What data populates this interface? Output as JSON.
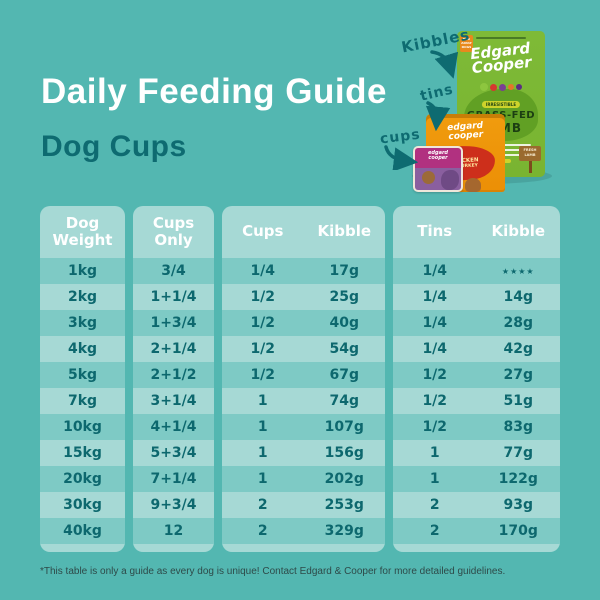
{
  "page": {
    "title": "Daily Feeding Guide",
    "subtitle": "Dog Cups",
    "footnote": "*This table is only a guide as every dog is unique! Contact Edgard & Cooper for more detailed guidelines."
  },
  "colors": {
    "bg": "#53b7b1",
    "block": "#a6d9d5",
    "stripe": "#7ecac5",
    "header-text": "#ffffff",
    "cell-text": "#0d686e",
    "title-text": "#ffffff",
    "subtitle-text": "#0e6b71",
    "label-text": "#0e6b71",
    "footnote-text": "#2e4a49",
    "bag-green": "#79b431",
    "tin-orange": "#f09c0e",
    "cup-magenta": "#b13180"
  },
  "product_labels": {
    "kibbles": "Kibbles",
    "tins": "tins",
    "cups": "cups"
  },
  "products": {
    "bag": {
      "badge": "FOR ADULT DOGS",
      "brand_line1": "Edgard",
      "brand_line2": "Cooper",
      "tag": "IRRESISTIBLE",
      "variant_line1": "GRASS-FED",
      "variant_line2": "LAMB",
      "sign_line1": "FRESH",
      "sign_line2": "LAMB"
    },
    "tin": {
      "brand_line1": "edgard",
      "brand_line2": "cooper",
      "flavor_line1": "CHICKEN",
      "flavor_line2": "& TURKEY"
    },
    "cup": {
      "brand_line1": "edgard",
      "brand_line2": "cooper"
    }
  },
  "table": {
    "columns": {
      "weight": {
        "header": [
          "Dog",
          "Weight"
        ]
      },
      "cups_only": {
        "header": [
          "Cups",
          "Only"
        ]
      },
      "cups_group": {
        "headers": [
          "Cups",
          "Kibble"
        ]
      },
      "tins_group": {
        "headers": [
          "Tins",
          "Kibble"
        ]
      }
    },
    "rows": [
      {
        "weight": "1kg",
        "cups_only": "3/4",
        "cups": "1/4",
        "cups_kibble": "17g",
        "tins": "1/4",
        "tins_kibble": "★★★★"
      },
      {
        "weight": "2kg",
        "cups_only": "1+1/4",
        "cups": "1/2",
        "cups_kibble": "25g",
        "tins": "1/4",
        "tins_kibble": "14g"
      },
      {
        "weight": "3kg",
        "cups_only": "1+3/4",
        "cups": "1/2",
        "cups_kibble": "40g",
        "tins": "1/4",
        "tins_kibble": "28g"
      },
      {
        "weight": "4kg",
        "cups_only": "2+1/4",
        "cups": "1/2",
        "cups_kibble": "54g",
        "tins": "1/4",
        "tins_kibble": "42g"
      },
      {
        "weight": "5kg",
        "cups_only": "2+1/2",
        "cups": "1/2",
        "cups_kibble": "67g",
        "tins": "1/2",
        "tins_kibble": "27g"
      },
      {
        "weight": "7kg",
        "cups_only": "3+1/4",
        "cups": "1",
        "cups_kibble": "74g",
        "tins": "1/2",
        "tins_kibble": "51g"
      },
      {
        "weight": "10kg",
        "cups_only": "4+1/4",
        "cups": "1",
        "cups_kibble": "107g",
        "tins": "1/2",
        "tins_kibble": "83g"
      },
      {
        "weight": "15kg",
        "cups_only": "5+3/4",
        "cups": "1",
        "cups_kibble": "156g",
        "tins": "1",
        "tins_kibble": "77g"
      },
      {
        "weight": "20kg",
        "cups_only": "7+1/4",
        "cups": "1",
        "cups_kibble": "202g",
        "tins": "1",
        "tins_kibble": "122g"
      },
      {
        "weight": "30kg",
        "cups_only": "9+3/4",
        "cups": "2",
        "cups_kibble": "253g",
        "tins": "2",
        "tins_kibble": "93g"
      },
      {
        "weight": "40kg",
        "cups_only": "12",
        "cups": "2",
        "cups_kibble": "329g",
        "tins": "2",
        "tins_kibble": "170g"
      }
    ]
  }
}
